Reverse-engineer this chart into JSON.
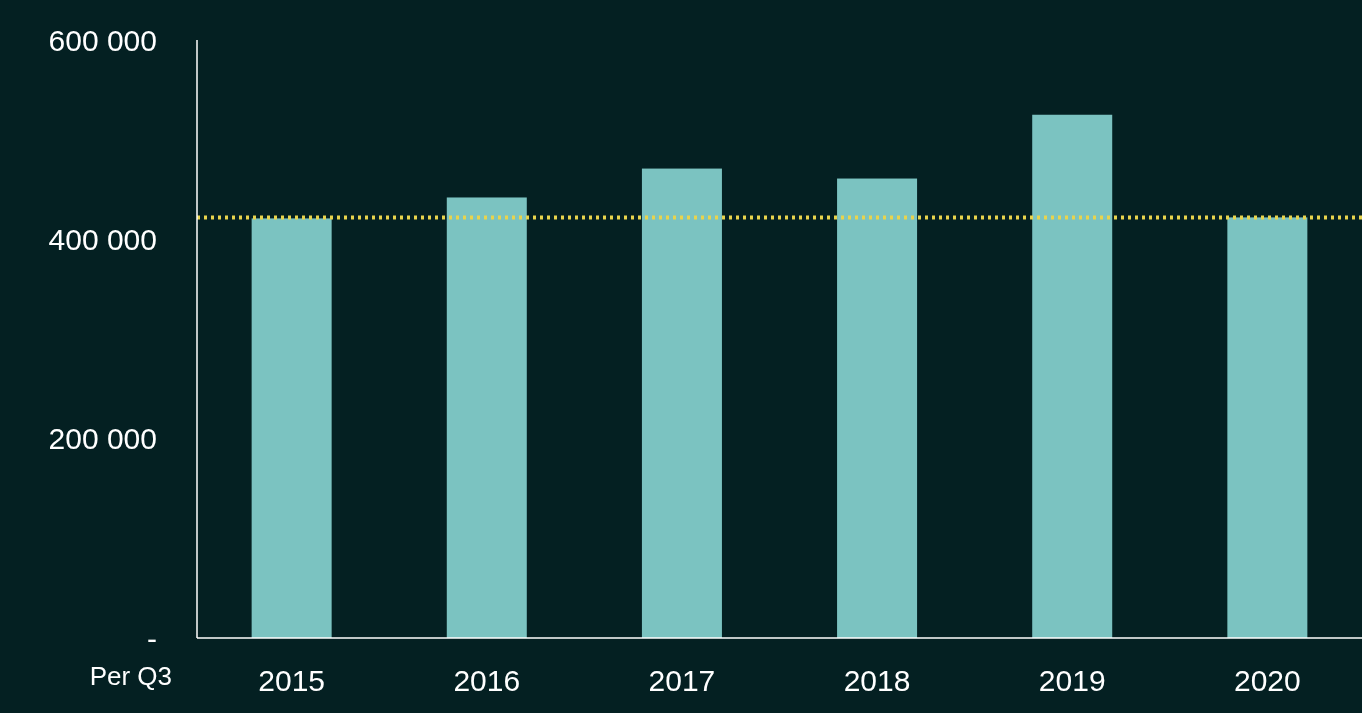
{
  "chart_data": {
    "type": "bar",
    "xlabel": "Per Q3",
    "categories": [
      "2015",
      "2016",
      "2017",
      "2018",
      "2019",
      "2020"
    ],
    "values": [
      421000,
      442000,
      471000,
      461000,
      525000,
      422000
    ],
    "color": "#7bc3c1",
    "ylim": [
      0,
      600000
    ],
    "yticks": [
      {
        "value": 0,
        "label": "-"
      },
      {
        "value": 200000,
        "label": "200 000"
      },
      {
        "value": 400000,
        "label": "400 000"
      },
      {
        "value": 600000,
        "label": "600 000"
      }
    ],
    "ref_lines": [
      {
        "axis": "y",
        "value": 422000,
        "color": "#e8d44d",
        "line_style": "dotted"
      }
    ],
    "grid": false
  }
}
